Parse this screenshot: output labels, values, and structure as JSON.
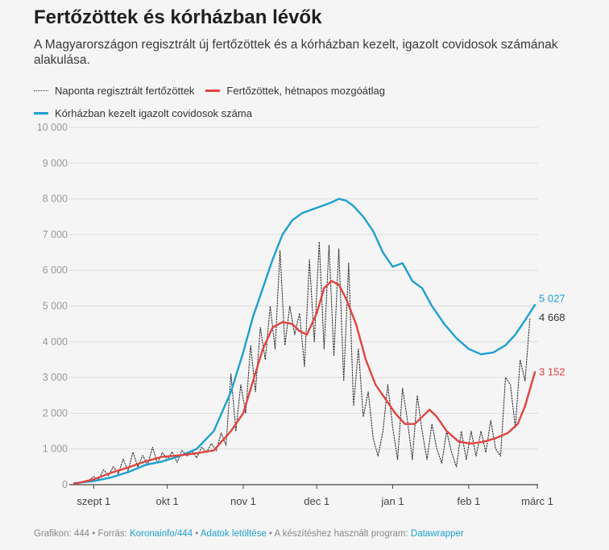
{
  "title": "Fertőzöttek és kórházban lévők",
  "subtitle": "A Magyarországon regisztrált új fertőzöttek és a kórházban kezelt, igazolt covidosok számának alakulása.",
  "legend": {
    "daily": "Naponta regisztrált fertőzöttek",
    "avg": "Fertőzöttek, hétnapos mozgóátlag",
    "hosp": "Kórházban kezelt igazolt covidosok száma"
  },
  "colors": {
    "daily": "#333333",
    "avg": "#e0443e",
    "hosp": "#1e9fd2",
    "grid": "#dddddd"
  },
  "footer": {
    "prefix": "Grafikon: 444 • Forrás: ",
    "source": "Koronainfo/444",
    "sep1": " • ",
    "download": "Adatok letöltése",
    "sep2": " • A készítéshez használt program: ",
    "tool": "Datawrapper"
  },
  "chart_data": {
    "type": "line",
    "x_range": [
      "2020-08-24",
      "2021-02-28"
    ],
    "ylim": [
      0,
      10000
    ],
    "y_ticks": [
      0,
      1000,
      2000,
      3000,
      4000,
      5000,
      6000,
      7000,
      8000,
      9000,
      10000
    ],
    "y_tick_labels": [
      "0",
      "1 000",
      "2 000",
      "3 000",
      "4 000",
      "5 000",
      "6 000",
      "7 000",
      "8 000",
      "9 000",
      "10 000"
    ],
    "x_ticks": [
      "2020-09-01",
      "2020-10-01",
      "2020-11-01",
      "2020-12-01",
      "2021-01-01",
      "2021-02-01",
      "2021-03-01"
    ],
    "x_tick_labels": [
      "szept 1",
      "okt 1",
      "nov 1",
      "dec 1",
      "jan 1",
      "feb 1",
      "márc 1"
    ],
    "grid": true,
    "legend_position": "top-left",
    "series": [
      {
        "key": "daily",
        "name": "Naponta regisztrált fertőzöttek",
        "style": "dotted",
        "end_label": "4 668",
        "points": [
          [
            "2020-08-24",
            30
          ],
          [
            "2020-08-27",
            60
          ],
          [
            "2020-08-30",
            120
          ],
          [
            "2020-09-01",
            230
          ],
          [
            "2020-09-03",
            150
          ],
          [
            "2020-09-05",
            420
          ],
          [
            "2020-09-07",
            250
          ],
          [
            "2020-09-09",
            510
          ],
          [
            "2020-09-11",
            300
          ],
          [
            "2020-09-13",
            720
          ],
          [
            "2020-09-15",
            380
          ],
          [
            "2020-09-17",
            910
          ],
          [
            "2020-09-19",
            500
          ],
          [
            "2020-09-21",
            820
          ],
          [
            "2020-09-23",
            550
          ],
          [
            "2020-09-25",
            1050
          ],
          [
            "2020-09-27",
            600
          ],
          [
            "2020-09-29",
            900
          ],
          [
            "2020-10-01",
            700
          ],
          [
            "2020-10-03",
            920
          ],
          [
            "2020-10-05",
            620
          ],
          [
            "2020-10-07",
            960
          ],
          [
            "2020-10-09",
            800
          ],
          [
            "2020-10-11",
            950
          ],
          [
            "2020-10-13",
            750
          ],
          [
            "2020-10-15",
            1050
          ],
          [
            "2020-10-17",
            900
          ],
          [
            "2020-10-19",
            1150
          ],
          [
            "2020-10-21",
            950
          ],
          [
            "2020-10-23",
            1450
          ],
          [
            "2020-10-25",
            1100
          ],
          [
            "2020-10-27",
            3100
          ],
          [
            "2020-10-29",
            1500
          ],
          [
            "2020-10-31",
            2800
          ],
          [
            "2020-11-02",
            2000
          ],
          [
            "2020-11-04",
            3900
          ],
          [
            "2020-11-06",
            2600
          ],
          [
            "2020-11-08",
            4400
          ],
          [
            "2020-11-10",
            3500
          ],
          [
            "2020-11-12",
            5000
          ],
          [
            "2020-11-14",
            3800
          ],
          [
            "2020-11-16",
            6550
          ],
          [
            "2020-11-18",
            3900
          ],
          [
            "2020-11-20",
            5000
          ],
          [
            "2020-11-22",
            4200
          ],
          [
            "2020-11-24",
            4800
          ],
          [
            "2020-11-26",
            3300
          ],
          [
            "2020-11-28",
            6300
          ],
          [
            "2020-11-30",
            4000
          ],
          [
            "2020-12-02",
            6800
          ],
          [
            "2020-12-04",
            3800
          ],
          [
            "2020-12-06",
            6700
          ],
          [
            "2020-12-08",
            3600
          ],
          [
            "2020-12-10",
            6600
          ],
          [
            "2020-12-12",
            2900
          ],
          [
            "2020-12-14",
            6200
          ],
          [
            "2020-12-16",
            2200
          ],
          [
            "2020-12-18",
            3800
          ],
          [
            "2020-12-20",
            1900
          ],
          [
            "2020-12-22",
            2600
          ],
          [
            "2020-12-24",
            1300
          ],
          [
            "2020-12-26",
            800
          ],
          [
            "2020-12-28",
            1500
          ],
          [
            "2020-12-30",
            2800
          ],
          [
            "2021-01-01",
            1600
          ],
          [
            "2021-01-03",
            700
          ],
          [
            "2021-01-05",
            2700
          ],
          [
            "2021-01-07",
            1800
          ],
          [
            "2021-01-09",
            700
          ],
          [
            "2021-01-11",
            2500
          ],
          [
            "2021-01-13",
            1500
          ],
          [
            "2021-01-15",
            700
          ],
          [
            "2021-01-17",
            1700
          ],
          [
            "2021-01-19",
            1000
          ],
          [
            "2021-01-21",
            600
          ],
          [
            "2021-01-23",
            1500
          ],
          [
            "2021-01-25",
            900
          ],
          [
            "2021-01-27",
            500
          ],
          [
            "2021-01-29",
            1500
          ],
          [
            "2021-01-31",
            700
          ],
          [
            "2021-02-02",
            1500
          ],
          [
            "2021-02-04",
            800
          ],
          [
            "2021-02-06",
            1500
          ],
          [
            "2021-02-08",
            900
          ],
          [
            "2021-02-10",
            1800
          ],
          [
            "2021-02-12",
            1000
          ],
          [
            "2021-02-14",
            800
          ],
          [
            "2021-02-16",
            3000
          ],
          [
            "2021-02-18",
            2800
          ],
          [
            "2021-02-20",
            1600
          ],
          [
            "2021-02-22",
            3500
          ],
          [
            "2021-02-24",
            2900
          ],
          [
            "2021-02-26",
            4668
          ]
        ]
      },
      {
        "key": "avg",
        "name": "Fertőzöttek, hétnapos mozgóátlag",
        "style": "solid",
        "end_label": "3 152",
        "points": [
          [
            "2020-08-24",
            20
          ],
          [
            "2020-09-01",
            150
          ],
          [
            "2020-09-08",
            330
          ],
          [
            "2020-09-15",
            480
          ],
          [
            "2020-09-22",
            650
          ],
          [
            "2020-09-29",
            780
          ],
          [
            "2020-10-06",
            820
          ],
          [
            "2020-10-13",
            880
          ],
          [
            "2020-10-20",
            960
          ],
          [
            "2020-10-27",
            1500
          ],
          [
            "2020-11-01",
            2000
          ],
          [
            "2020-11-05",
            2900
          ],
          [
            "2020-11-09",
            3800
          ],
          [
            "2020-11-13",
            4400
          ],
          [
            "2020-11-17",
            4550
          ],
          [
            "2020-11-21",
            4500
          ],
          [
            "2020-11-24",
            4300
          ],
          [
            "2020-11-27",
            4200
          ],
          [
            "2020-12-01",
            4800
          ],
          [
            "2020-12-04",
            5500
          ],
          [
            "2020-12-07",
            5700
          ],
          [
            "2020-12-10",
            5600
          ],
          [
            "2020-12-13",
            5200
          ],
          [
            "2020-12-17",
            4500
          ],
          [
            "2020-12-21",
            3500
          ],
          [
            "2020-12-25",
            2800
          ],
          [
            "2020-12-29",
            2400
          ],
          [
            "2021-01-02",
            2000
          ],
          [
            "2021-01-06",
            1700
          ],
          [
            "2021-01-10",
            1700
          ],
          [
            "2021-01-13",
            1900
          ],
          [
            "2021-01-16",
            2100
          ],
          [
            "2021-01-19",
            1900
          ],
          [
            "2021-01-23",
            1500
          ],
          [
            "2021-01-28",
            1200
          ],
          [
            "2021-02-02",
            1150
          ],
          [
            "2021-02-07",
            1200
          ],
          [
            "2021-02-12",
            1300
          ],
          [
            "2021-02-17",
            1450
          ],
          [
            "2021-02-21",
            1700
          ],
          [
            "2021-02-24",
            2200
          ],
          [
            "2021-02-28",
            3152
          ]
        ]
      },
      {
        "key": "hosp",
        "name": "Kórházban kezelt igazolt covidosok száma",
        "style": "solid",
        "end_label": "5 027",
        "points": [
          [
            "2020-08-24",
            40
          ],
          [
            "2020-09-01",
            100
          ],
          [
            "2020-09-08",
            200
          ],
          [
            "2020-09-15",
            350
          ],
          [
            "2020-09-22",
            550
          ],
          [
            "2020-09-29",
            650
          ],
          [
            "2020-10-06",
            800
          ],
          [
            "2020-10-13",
            1000
          ],
          [
            "2020-10-20",
            1500
          ],
          [
            "2020-10-27",
            2600
          ],
          [
            "2020-11-01",
            3700
          ],
          [
            "2020-11-05",
            4700
          ],
          [
            "2020-11-09",
            5500
          ],
          [
            "2020-11-13",
            6300
          ],
          [
            "2020-11-17",
            7000
          ],
          [
            "2020-11-21",
            7400
          ],
          [
            "2020-11-25",
            7600
          ],
          [
            "2020-11-29",
            7700
          ],
          [
            "2020-12-03",
            7800
          ],
          [
            "2020-12-07",
            7900
          ],
          [
            "2020-12-10",
            8000
          ],
          [
            "2020-12-13",
            7950
          ],
          [
            "2020-12-16",
            7800
          ],
          [
            "2020-12-20",
            7500
          ],
          [
            "2020-12-24",
            7100
          ],
          [
            "2020-12-28",
            6500
          ],
          [
            "2021-01-01",
            6100
          ],
          [
            "2021-01-05",
            6200
          ],
          [
            "2021-01-09",
            5700
          ],
          [
            "2021-01-13",
            5500
          ],
          [
            "2021-01-17",
            5000
          ],
          [
            "2021-01-22",
            4500
          ],
          [
            "2021-01-27",
            4100
          ],
          [
            "2021-02-01",
            3800
          ],
          [
            "2021-02-06",
            3650
          ],
          [
            "2021-02-11",
            3700
          ],
          [
            "2021-02-16",
            3900
          ],
          [
            "2021-02-20",
            4200
          ],
          [
            "2021-02-23",
            4500
          ],
          [
            "2021-02-28",
            5027
          ]
        ]
      }
    ]
  }
}
